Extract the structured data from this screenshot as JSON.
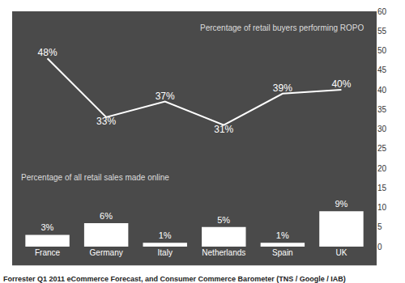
{
  "chart_data": {
    "type": "line",
    "categories": [
      "France",
      "Germany",
      "Italy",
      "Netherlands",
      "Spain",
      "UK"
    ],
    "series": [
      {
        "name": "Percentage of retail buyers performing ROPO",
        "type": "line",
        "color": "#ffffff",
        "values": [
          48,
          33,
          37,
          31,
          39,
          40
        ],
        "value_labels": [
          "48%",
          "33%",
          "37%",
          "31%",
          "39%",
          "40%"
        ]
      },
      {
        "name": "Percentage of all retail sales made online",
        "type": "bar",
        "color": "#ffffff",
        "values": [
          3,
          6,
          1,
          5,
          1,
          9
        ],
        "value_labels": [
          "3%",
          "6%",
          "1%",
          "5%",
          "1%",
          "9%"
        ]
      }
    ],
    "ylim": [
      0,
      60
    ],
    "yticks": [
      0,
      5,
      10,
      15,
      20,
      25,
      30,
      35,
      40,
      45,
      50,
      55,
      60
    ],
    "grid": false,
    "data_labels": true,
    "source": "Forrester Q1 2011 eCommerce Forecast, and Consumer Commerce Barometer (TNS / Google / IAB)"
  }
}
